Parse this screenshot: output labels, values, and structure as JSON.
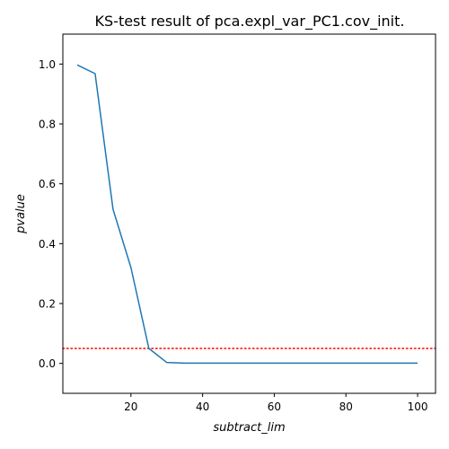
{
  "chart_data": {
    "type": "line",
    "title": "KS-test result of pca.expl_var_PC1.cov_init.",
    "xlabel": "subtract_lim",
    "ylabel": "pvalue",
    "xlim": [
      1,
      105
    ],
    "ylim": [
      -0.1,
      1.1
    ],
    "x_ticks": [
      20,
      40,
      60,
      80,
      100
    ],
    "x_tick_labels": [
      "20",
      "40",
      "60",
      "80",
      "100"
    ],
    "y_ticks": [
      0.0,
      0.2,
      0.4,
      0.6,
      0.8,
      1.0
    ],
    "y_tick_labels": [
      "0.0",
      "0.2",
      "0.4",
      "0.6",
      "0.8",
      "1.0"
    ],
    "grid": false,
    "series": [
      {
        "color": "#1f77b4",
        "x": [
          5,
          10,
          15,
          20,
          25,
          30,
          35,
          40,
          45,
          50,
          55,
          60,
          65,
          70,
          75,
          80,
          85,
          90,
          95,
          100
        ],
        "values": [
          0.997,
          0.968,
          0.515,
          0.32,
          0.05,
          0.003,
          0.001,
          0.001,
          0.001,
          0.001,
          0.001,
          0.001,
          0.001,
          0.001,
          0.001,
          0.001,
          0.001,
          0.001,
          0.001,
          0.001
        ]
      }
    ],
    "reference_lines": [
      {
        "orientation": "horizontal",
        "y": 0.05,
        "color": "#ff0000",
        "style": "dotted"
      }
    ]
  }
}
